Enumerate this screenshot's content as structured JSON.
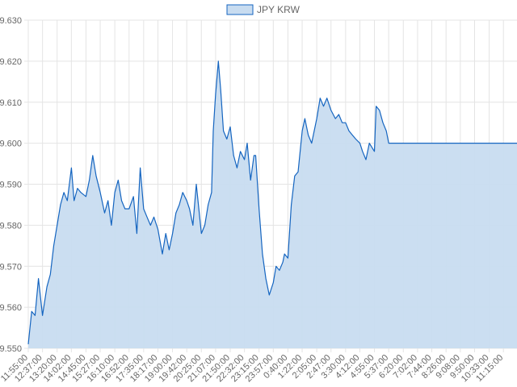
{
  "colors": {
    "line": "#1565c0",
    "fill": "#c8dcf0",
    "grid": "#e4e4e4",
    "tick_text": "#666666"
  },
  "legend": {
    "label": "JPY KRW",
    "position": "top-center"
  },
  "chart_data": {
    "type": "area",
    "title": "",
    "xlabel": "",
    "ylabel": "",
    "ylim": [
      9.55,
      9.63
    ],
    "grid": true,
    "legend": "top",
    "y_ticks": [
      "9.630",
      "9.620",
      "9.610",
      "9.600",
      "9.590",
      "9.580",
      "9.570",
      "9.560",
      "9.550"
    ],
    "x_ticks": [
      "11:55:00",
      "12:37:00",
      "13:20:00",
      "14:02:00",
      "14:45:00",
      "15:27:00",
      "16:10:00",
      "16:52:00",
      "17:35:00",
      "18:17:00",
      "19:00:00",
      "19:42:00",
      "20:25:00",
      "21:07:00",
      "21:50:00",
      "22:32:00",
      "23:15:00",
      "23:57:00",
      "0:40:00",
      "1:22:00",
      "2:05:00",
      "2:47:00",
      "3:30:00",
      "4:12:00",
      "4:55:00",
      "5:37:00",
      "6:20:00",
      "7:02:00",
      "7:44:00",
      "8:26:00",
      "9:08:00",
      "9:50:00",
      "10:33:00",
      "11:15:00"
    ],
    "series": [
      {
        "name": "JPY KRW",
        "points": [
          [
            "11:55:00",
            9.551
          ],
          [
            "12:05:00",
            9.559
          ],
          [
            "12:15:00",
            9.558
          ],
          [
            "12:25:00",
            9.567
          ],
          [
            "12:37:00",
            9.558
          ],
          [
            "12:50:00",
            9.565
          ],
          [
            "13:00:00",
            9.568
          ],
          [
            "13:10:00",
            9.575
          ],
          [
            "13:20:00",
            9.58
          ],
          [
            "13:30:00",
            9.585
          ],
          [
            "13:40:00",
            9.588
          ],
          [
            "13:50:00",
            9.586
          ],
          [
            "14:02:00",
            9.594
          ],
          [
            "14:10:00",
            9.586
          ],
          [
            "14:20:00",
            9.589
          ],
          [
            "14:30:00",
            9.588
          ],
          [
            "14:45:00",
            9.587
          ],
          [
            "14:55:00",
            9.591
          ],
          [
            "15:05:00",
            9.597
          ],
          [
            "15:15:00",
            9.592
          ],
          [
            "15:27:00",
            9.588
          ],
          [
            "15:40:00",
            9.583
          ],
          [
            "15:50:00",
            9.586
          ],
          [
            "16:00:00",
            9.58
          ],
          [
            "16:10:00",
            9.588
          ],
          [
            "16:20:00",
            9.591
          ],
          [
            "16:30:00",
            9.586
          ],
          [
            "16:40:00",
            9.584
          ],
          [
            "16:52:00",
            9.584
          ],
          [
            "17:05:00",
            9.587
          ],
          [
            "17:15:00",
            9.578
          ],
          [
            "17:25:00",
            9.594
          ],
          [
            "17:35:00",
            9.584
          ],
          [
            "17:45:00",
            9.582
          ],
          [
            "17:55:00",
            9.58
          ],
          [
            "18:05:00",
            9.582
          ],
          [
            "18:17:00",
            9.579
          ],
          [
            "18:30:00",
            9.573
          ],
          [
            "18:40:00",
            9.578
          ],
          [
            "18:50:00",
            9.574
          ],
          [
            "19:00:00",
            9.578
          ],
          [
            "19:10:00",
            9.583
          ],
          [
            "19:20:00",
            9.585
          ],
          [
            "19:30:00",
            9.588
          ],
          [
            "19:42:00",
            9.586
          ],
          [
            "19:50:00",
            9.584
          ],
          [
            "20:00:00",
            9.58
          ],
          [
            "20:10:00",
            9.59
          ],
          [
            "20:25:00",
            9.578
          ],
          [
            "20:35:00",
            9.58
          ],
          [
            "20:45:00",
            9.585
          ],
          [
            "20:55:00",
            9.588
          ],
          [
            "21:00:00",
            9.603
          ],
          [
            "21:07:00",
            9.612
          ],
          [
            "21:15:00",
            9.62
          ],
          [
            "21:22:00",
            9.613
          ],
          [
            "21:30:00",
            9.603
          ],
          [
            "21:40:00",
            9.601
          ],
          [
            "21:50:00",
            9.604
          ],
          [
            "22:00:00",
            9.597
          ],
          [
            "22:10:00",
            9.594
          ],
          [
            "22:20:00",
            9.598
          ],
          [
            "22:32:00",
            9.596
          ],
          [
            "22:40:00",
            9.6
          ],
          [
            "22:50:00",
            9.591
          ],
          [
            "23:00:00",
            9.597
          ],
          [
            "23:05:00",
            9.597
          ],
          [
            "23:15:00",
            9.584
          ],
          [
            "23:25:00",
            9.573
          ],
          [
            "23:35:00",
            9.567
          ],
          [
            "23:45:00",
            9.563
          ],
          [
            "23:57:00",
            9.566
          ],
          [
            "0:05:00",
            9.57
          ],
          [
            "0:15:00",
            9.569
          ],
          [
            "0:25:00",
            9.571
          ],
          [
            "0:30:00",
            9.573
          ],
          [
            "0:40:00",
            9.572
          ],
          [
            "0:50:00",
            9.585
          ],
          [
            "1:00:00",
            9.592
          ],
          [
            "1:10:00",
            9.593
          ],
          [
            "1:22:00",
            9.603
          ],
          [
            "1:30:00",
            9.606
          ],
          [
            "1:40:00",
            9.602
          ],
          [
            "1:50:00",
            9.6
          ],
          [
            "2:05:00",
            9.606
          ],
          [
            "2:15:00",
            9.611
          ],
          [
            "2:25:00",
            9.609
          ],
          [
            "2:35:00",
            9.611
          ],
          [
            "2:47:00",
            9.608
          ],
          [
            "3:00:00",
            9.606
          ],
          [
            "3:10:00",
            9.607
          ],
          [
            "3:20:00",
            9.605
          ],
          [
            "3:30:00",
            9.605
          ],
          [
            "3:40:00",
            9.603
          ],
          [
            "3:50:00",
            9.602
          ],
          [
            "4:00:00",
            9.601
          ],
          [
            "4:12:00",
            9.6
          ],
          [
            "4:20:00",
            9.598
          ],
          [
            "4:30:00",
            9.596
          ],
          [
            "4:40:00",
            9.6
          ],
          [
            "4:55:00",
            9.598
          ],
          [
            "5:00:00",
            9.609
          ],
          [
            "5:10:00",
            9.608
          ],
          [
            "5:20:00",
            9.605
          ],
          [
            "5:30:00",
            9.603
          ],
          [
            "5:37:00",
            9.6
          ],
          [
            "5:40:00",
            9.6
          ],
          [
            "6:20:00",
            9.6
          ],
          [
            "7:02:00",
            9.6
          ],
          [
            "7:44:00",
            9.6
          ],
          [
            "8:26:00",
            9.6
          ],
          [
            "9:08:00",
            9.6
          ],
          [
            "9:50:00",
            9.6
          ],
          [
            "10:33:00",
            9.6
          ],
          [
            "11:15:00",
            9.6
          ],
          [
            "11:55:00",
            9.6
          ]
        ]
      }
    ]
  }
}
